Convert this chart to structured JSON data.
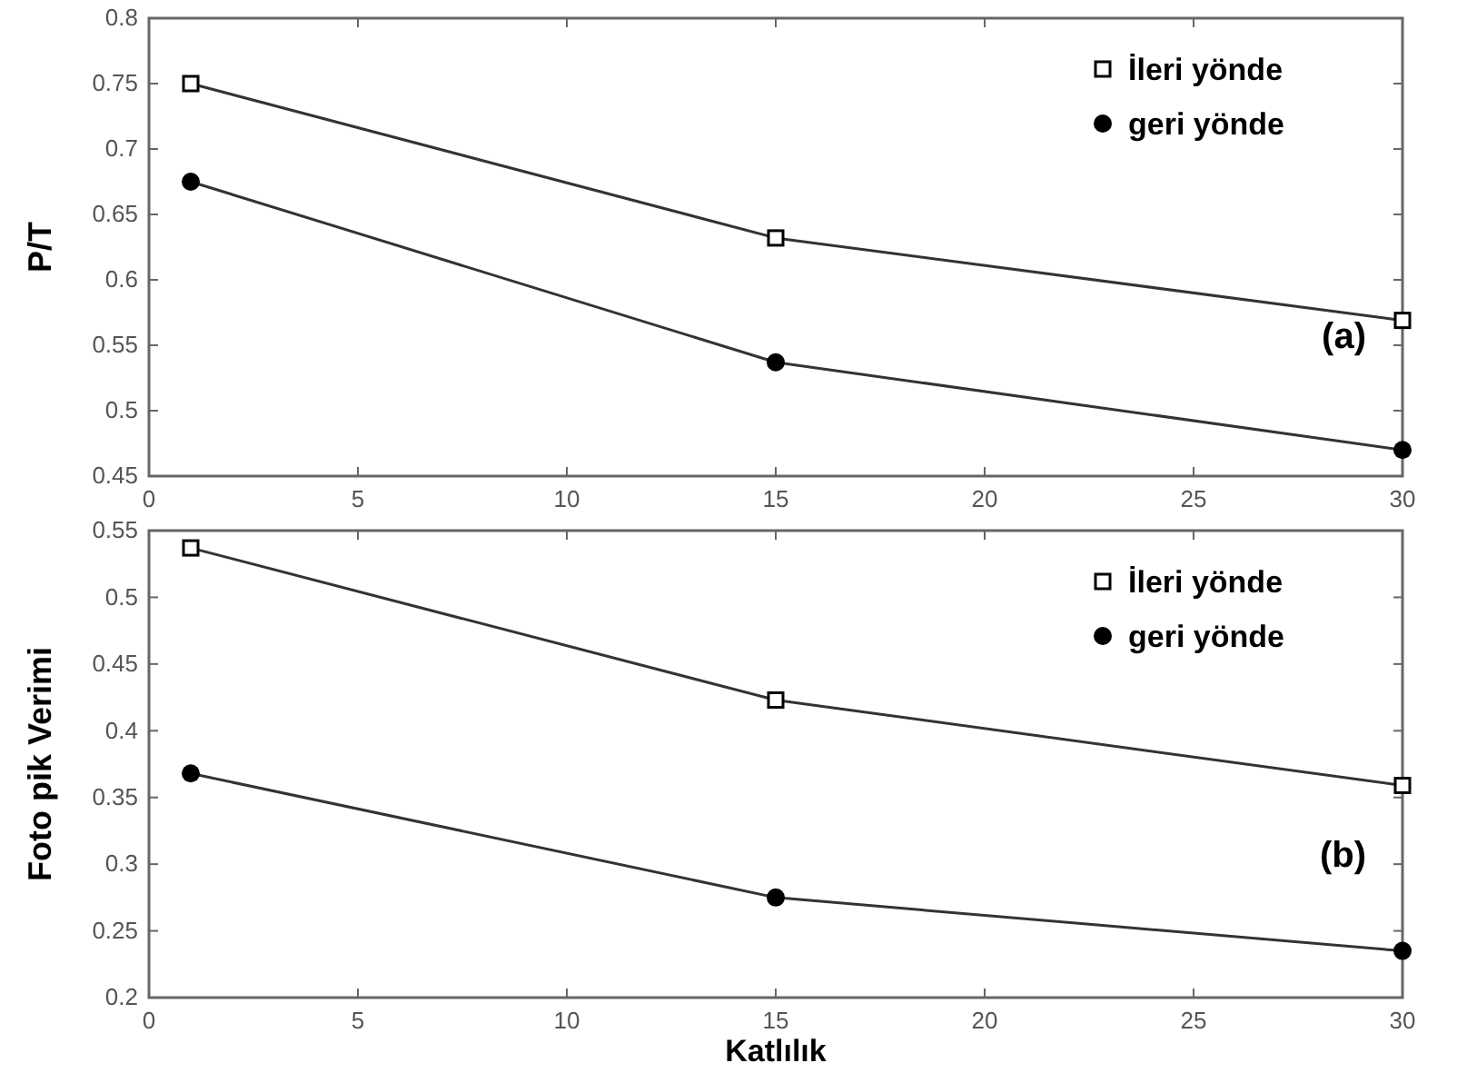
{
  "chart_data": [
    {
      "type": "line",
      "ylabel": "P/T",
      "x": [
        1,
        15,
        30
      ],
      "xlim": [
        0,
        30
      ],
      "xticks": [
        0,
        5,
        10,
        15,
        20,
        25,
        30
      ],
      "ylim": [
        0.45,
        0.8
      ],
      "yticks": [
        0.45,
        0.5,
        0.55,
        0.6,
        0.65,
        0.7,
        0.75,
        0.8
      ],
      "grid": false,
      "legend": "top right",
      "annotations": [
        "(a)"
      ],
      "series": [
        {
          "name": "İleri yönde",
          "color": "#333333",
          "marker": "square",
          "values": [
            0.75,
            0.632,
            0.569
          ]
        },
        {
          "name": "geri yönde",
          "color": "#333333",
          "marker": "circle",
          "values": [
            0.675,
            0.537,
            0.47
          ]
        }
      ]
    },
    {
      "type": "line",
      "ylabel": "Foto pik Verimi",
      "xlabel": "Katlılık",
      "x": [
        1,
        15,
        30
      ],
      "xlim": [
        0,
        30
      ],
      "xticks": [
        0,
        5,
        10,
        15,
        20,
        25,
        30
      ],
      "ylim": [
        0.2,
        0.55
      ],
      "yticks": [
        0.2,
        0.25,
        0.3,
        0.35,
        0.4,
        0.45,
        0.5,
        0.55
      ],
      "grid": false,
      "legend": "top right",
      "annotations": [
        "(b)"
      ],
      "series": [
        {
          "name": "İleri yönde",
          "color": "#333333",
          "marker": "square",
          "values": [
            0.537,
            0.423,
            0.359
          ]
        },
        {
          "name": "geri yönde",
          "color": "#333333",
          "marker": "circle",
          "values": [
            0.368,
            0.275,
            0.235
          ]
        }
      ]
    }
  ]
}
